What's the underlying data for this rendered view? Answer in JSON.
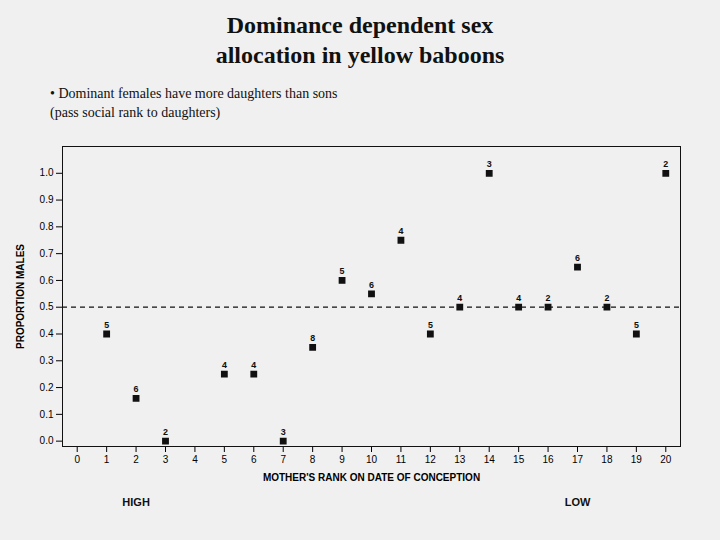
{
  "chart_data": {
    "type": "scatter",
    "title": "Dominance dependent sex\nallocation in yellow baboons",
    "subtitle": "• Dominant females have more daughters than sons\n(pass social rank to daughters)",
    "xlabel": "MOTHER'S RANK ON DATE OF CONCEPTION",
    "ylabel": "PROPORTION MALES",
    "x": [
      1,
      2,
      3,
      5,
      6,
      7,
      8,
      9,
      10,
      11,
      12,
      13,
      14,
      15,
      16,
      17,
      18,
      19,
      20
    ],
    "values": [
      0.4,
      0.16,
      0.0,
      0.25,
      0.25,
      0.0,
      0.35,
      0.6,
      0.55,
      0.75,
      0.4,
      0.5,
      1.0,
      0.5,
      0.5,
      0.65,
      0.5,
      0.4,
      1.0
    ],
    "n": [
      5,
      6,
      2,
      4,
      4,
      3,
      8,
      5,
      6,
      4,
      5,
      4,
      3,
      4,
      2,
      6,
      2,
      5,
      2
    ],
    "color": "#111111",
    "marker": "square",
    "xlim": [
      -0.5,
      20.5
    ],
    "ylim": [
      -0.02,
      1.1
    ],
    "xticks": [
      0,
      1,
      2,
      3,
      4,
      5,
      6,
      7,
      8,
      9,
      10,
      11,
      12,
      13,
      14,
      15,
      16,
      17,
      18,
      19,
      20
    ],
    "yticks": [
      {
        "value": 0.0,
        "label": "0.0"
      },
      0.1,
      0.2,
      0.3,
      0.4,
      0.5,
      0.6,
      0.7,
      0.8,
      0.9,
      {
        "value": 1.0,
        "label": "1.0"
      }
    ],
    "reference_lines": [
      {
        "y": 0.5,
        "line_style": "dashed",
        "color": "#111111"
      }
    ],
    "annotations": [
      {
        "text": "HIGH",
        "x": 2
      },
      {
        "text": "LOW",
        "x": 17
      }
    ],
    "grid": false
  }
}
